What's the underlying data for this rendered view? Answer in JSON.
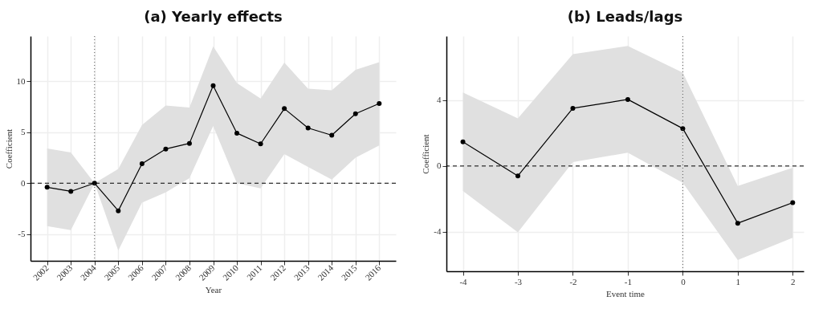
{
  "chart_data": [
    {
      "type": "line",
      "title": "(a) Yearly effects",
      "xlabel": "Year",
      "ylabel": "Coefficient",
      "x": [
        2002,
        2003,
        2004,
        2005,
        2006,
        2007,
        2008,
        2009,
        2010,
        2011,
        2012,
        2013,
        2014,
        2015,
        2016
      ],
      "xlim": [
        2001.3,
        2016.7
      ],
      "xticks": [
        2002,
        2003,
        2004,
        2005,
        2006,
        2007,
        2008,
        2009,
        2010,
        2011,
        2012,
        2013,
        2014,
        2015,
        2016
      ],
      "ylim": [
        -7.6,
        14.4
      ],
      "yticks": [
        -5,
        0,
        5,
        10
      ],
      "grid": true,
      "marker": "circle",
      "line_style": "solid",
      "series": [
        {
          "color": "#000000",
          "values": [
            -0.4,
            -0.8,
            0,
            -2.7,
            1.9,
            3.35,
            3.9,
            9.55,
            4.9,
            3.85,
            7.3,
            5.4,
            4.7,
            6.8,
            7.8
          ],
          "lower": [
            -4.2,
            -4.6,
            0,
            -6.6,
            -1.9,
            -0.9,
            0.5,
            5.6,
            0,
            -0.5,
            2.85,
            1.6,
            0.35,
            2.5,
            3.7
          ],
          "upper": [
            3.4,
            3.0,
            0,
            1.4,
            5.7,
            7.6,
            7.4,
            13.4,
            9.8,
            8.3,
            11.8,
            9.25,
            9.1,
            11.1,
            11.85
          ]
        }
      ],
      "ref_lines": [
        {
          "axis": "y",
          "value": 0,
          "line_style": "dashed",
          "color": "#000000"
        },
        {
          "axis": "x",
          "value": 2004,
          "line_style": "dotted",
          "color": "#555555"
        }
      ]
    },
    {
      "type": "line",
      "title": "(b) Leads/lags",
      "xlabel": "Event time",
      "ylabel": "Coefficient",
      "x": [
        -4,
        -3,
        -2,
        -1,
        0,
        1,
        2
      ],
      "xlim": [
        -4.3,
        2.2
      ],
      "xticks": [
        -4,
        -3,
        -2,
        -1,
        0,
        1,
        2
      ],
      "ylim": [
        -6.4,
        7.9
      ],
      "yticks": [
        -4,
        0,
        4
      ],
      "grid": true,
      "marker": "circle",
      "line_style": "solid",
      "series": [
        {
          "color": "#000000",
          "values": [
            1.47,
            -0.6,
            3.51,
            4.05,
            2.28,
            -3.48,
            -2.23
          ],
          "lower": [
            -1.52,
            -4.03,
            0.24,
            0.81,
            -1.02,
            -5.72,
            -4.36
          ],
          "upper": [
            4.47,
            2.9,
            6.8,
            7.3,
            5.68,
            -1.21,
            -0.1
          ]
        }
      ],
      "ref_lines": [
        {
          "axis": "y",
          "value": 0,
          "line_style": "dashed",
          "color": "#000000"
        },
        {
          "axis": "x",
          "value": 0,
          "line_style": "dotted",
          "color": "#555555"
        }
      ]
    }
  ]
}
